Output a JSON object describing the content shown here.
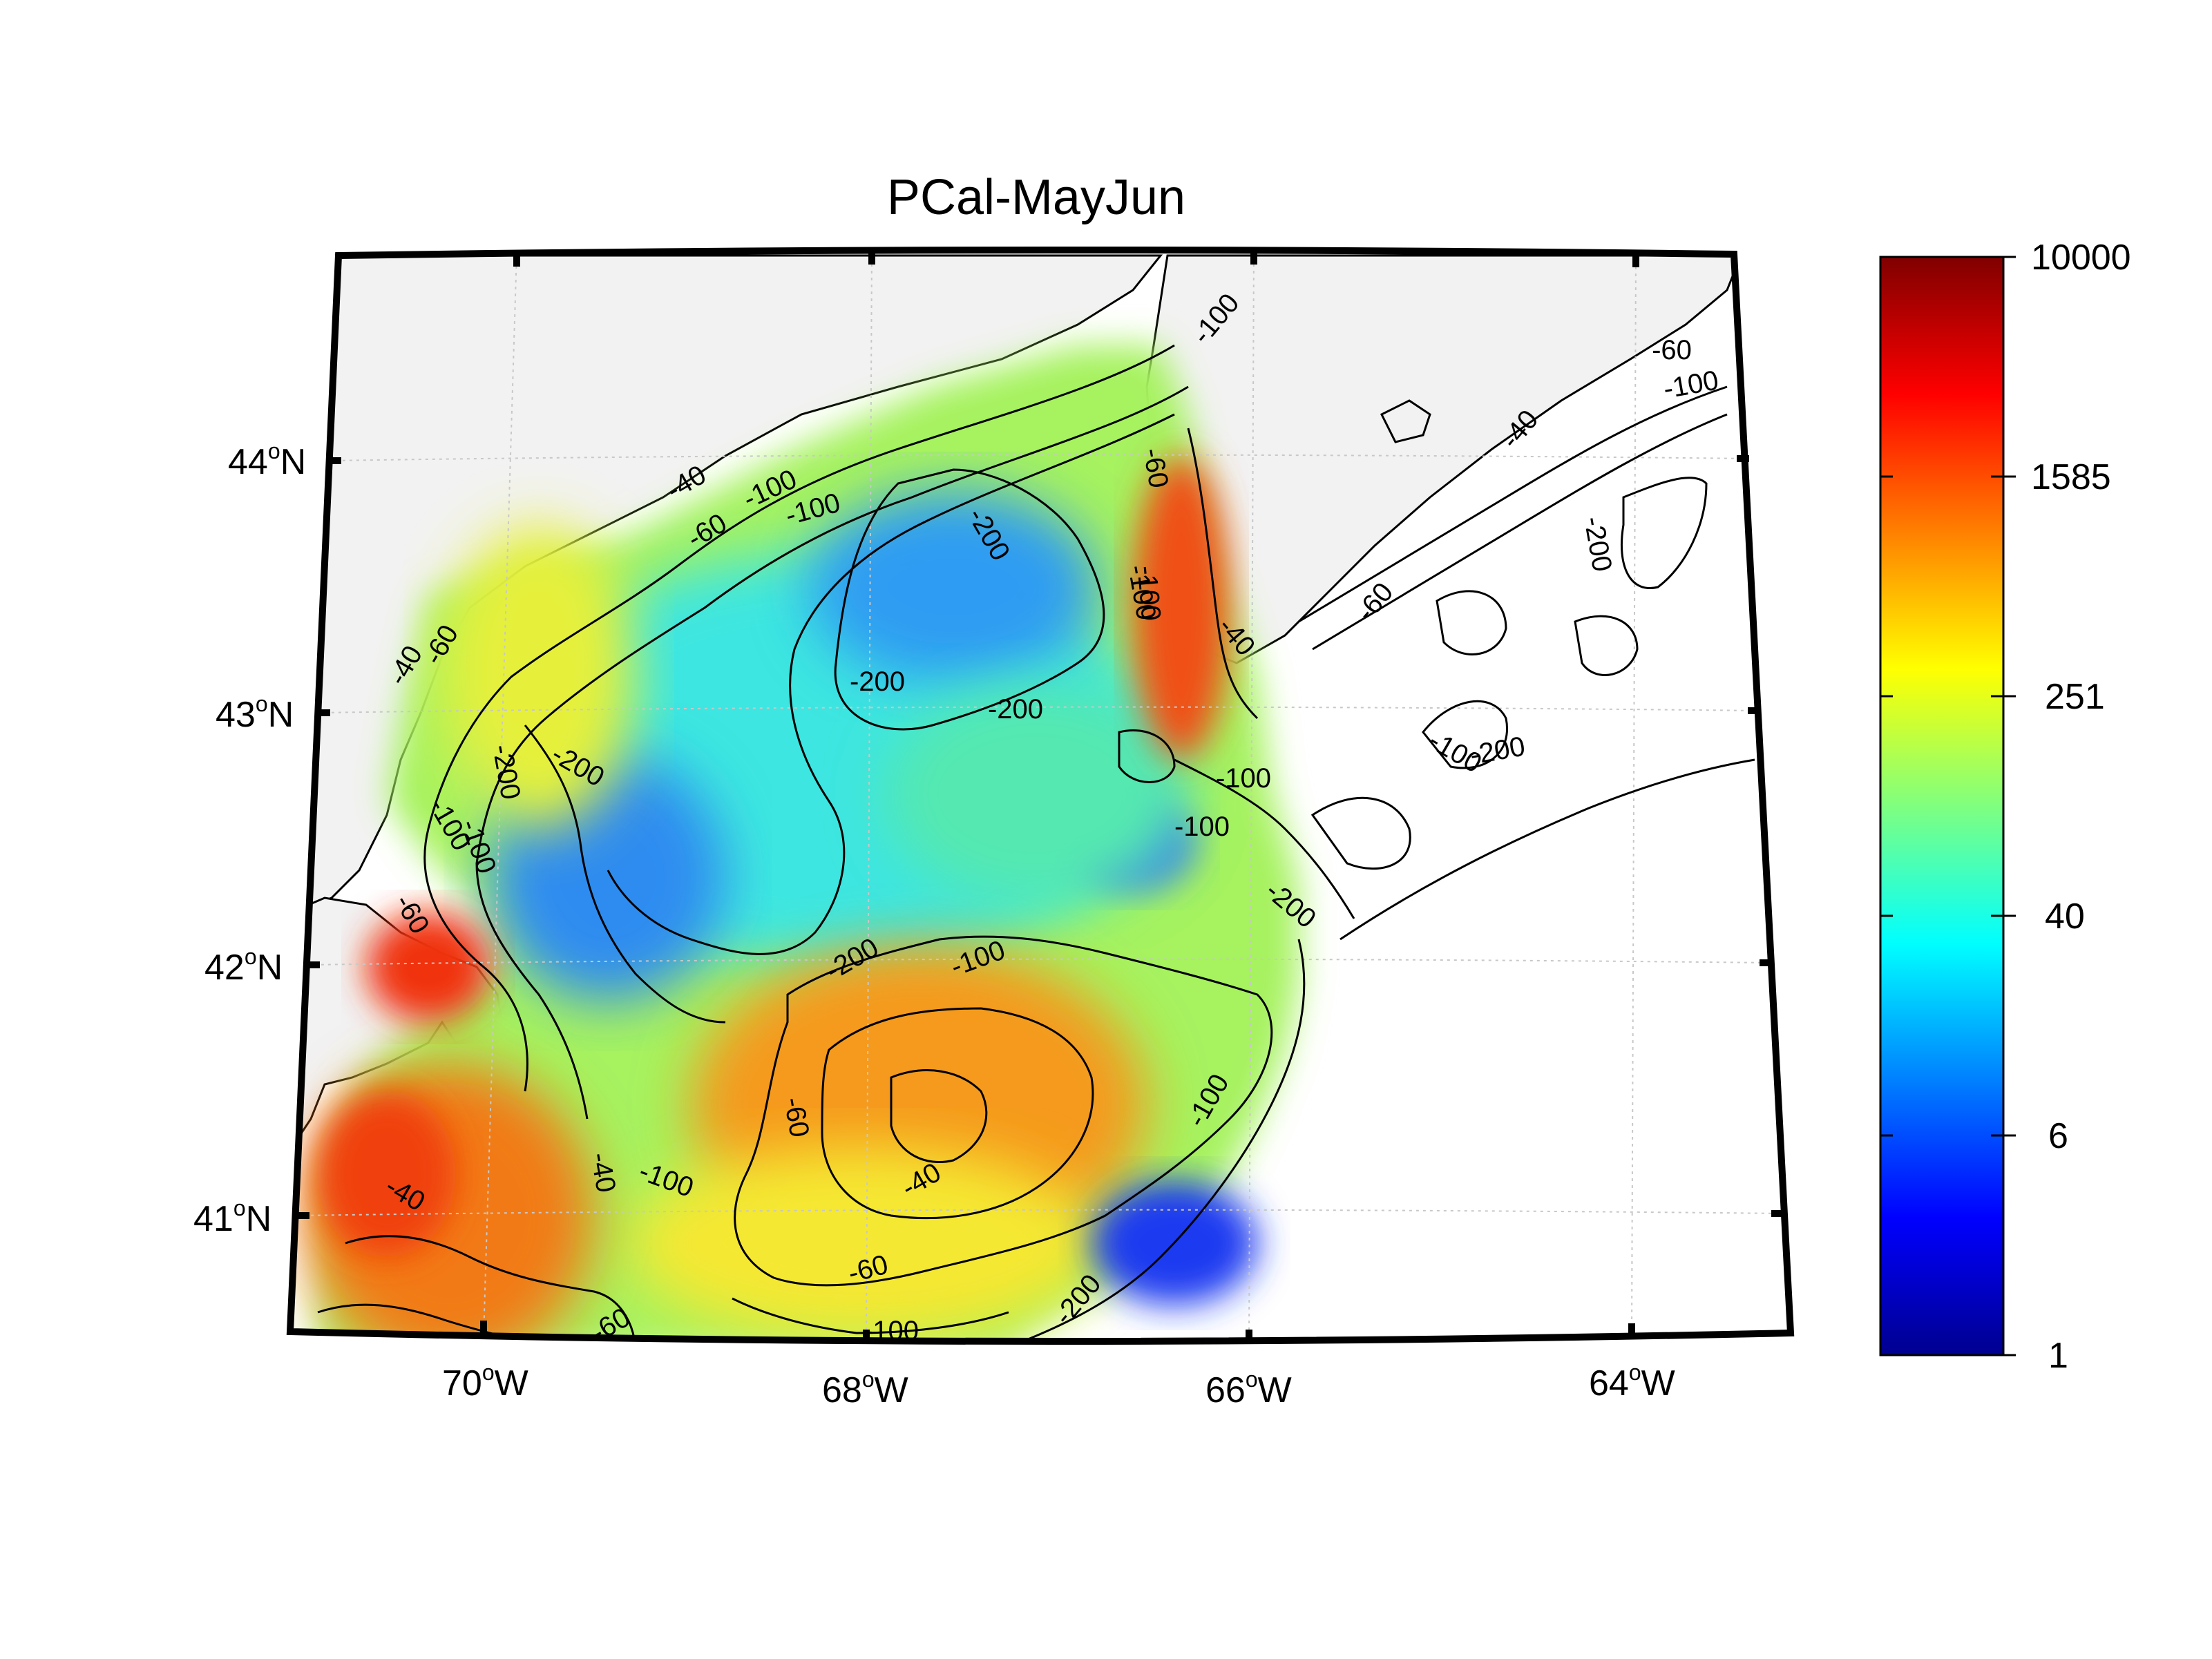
{
  "title": "PCal-MayJun",
  "map": {
    "lon_ticks": [
      {
        "deg": "70",
        "hemi": "W"
      },
      {
        "deg": "68",
        "hemi": "W"
      },
      {
        "deg": "66",
        "hemi": "W"
      },
      {
        "deg": "64",
        "hemi": "W"
      }
    ],
    "lat_ticks": [
      {
        "deg": "44",
        "hemi": "N"
      },
      {
        "deg": "43",
        "hemi": "N"
      },
      {
        "deg": "42",
        "hemi": "N"
      },
      {
        "deg": "41",
        "hemi": "N"
      }
    ],
    "contour_labels": [
      "-40",
      "-60",
      "-100",
      "-200",
      "-60",
      "-100",
      "-200",
      "-200",
      "-200",
      "-100",
      "-60",
      "-40",
      "-100",
      "-200",
      "-100",
      "-100",
      "-100",
      "-200",
      "-60",
      "-100",
      "-100",
      "-40",
      "-200",
      "-100",
      "-200",
      "-100",
      "-60",
      "-40",
      "-200",
      "-100",
      "-60",
      "-40",
      "-60",
      "-100",
      "-200",
      "-40",
      "-60",
      "-100",
      "-40",
      "-60",
      "-100"
    ],
    "colors": {
      "land": "#f2f2f2",
      "ocean": "#ffffff",
      "frame": "#000000",
      "grid": "#c8c8c8"
    }
  },
  "colorbar": {
    "scale": "log",
    "tick_labels": [
      "10000",
      "1585",
      "251",
      "40",
      "6",
      "1"
    ],
    "colormap": "jet"
  }
}
